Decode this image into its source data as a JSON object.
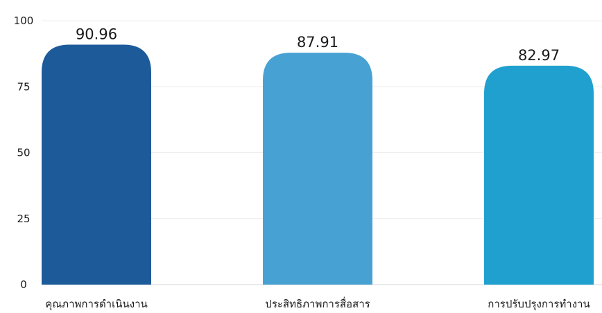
{
  "chart_data": {
    "type": "bar",
    "title": "",
    "xlabel": "",
    "ylabel": "",
    "ylim": [
      0,
      100
    ],
    "yticks": [
      0,
      25,
      50,
      75,
      100
    ],
    "grid": true,
    "categories": [
      "คุณภาพการดำเนินงาน",
      "ประสิทธิภาพการสื่อสาร",
      "การปรับปรุงการทำงาน"
    ],
    "values": [
      90.96,
      87.91,
      82.97
    ],
    "value_labels": [
      "90.96",
      "87.91",
      "82.97"
    ],
    "colors": [
      "#1d5a9a",
      "#47a2d3",
      "#20a0cf"
    ]
  }
}
